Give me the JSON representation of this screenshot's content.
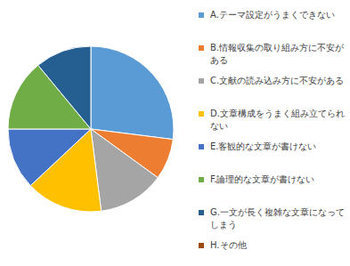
{
  "chart_data": {
    "type": "pie",
    "categories": [
      "A.テーマ設定がうまくできない",
      "B.情報収集の取り組み方に不安がある",
      "C.文献の読み込み方に不安がある",
      "D.文章構成をうまく組み立てられない",
      "E.客観的な文章が書けない",
      "F.論理的な文章が書けない",
      "G.一文が長く複雑な文章になってしまう",
      "H.その他"
    ],
    "values": [
      27,
      8,
      13,
      15,
      12,
      14,
      11,
      0
    ],
    "colors": [
      "#5b9bd5",
      "#ed7d31",
      "#a5a5a5",
      "#ffc000",
      "#4472c4",
      "#70ad47",
      "#255e91",
      "#9e480e"
    ],
    "legend": "right"
  }
}
